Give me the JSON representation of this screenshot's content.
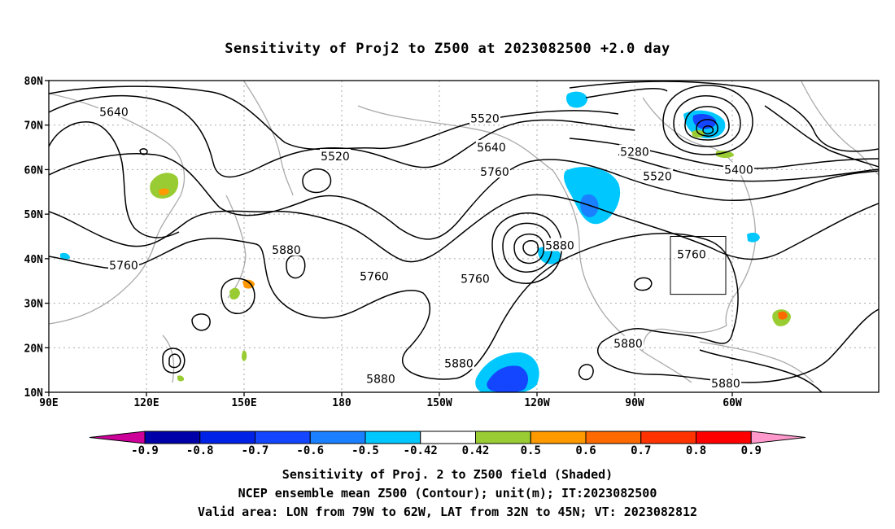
{
  "title": "Sensitivity of Proj2 to Z500 at 2023082500 +2.0 day",
  "lat_labels": [
    "80N",
    "70N",
    "60N",
    "50N",
    "40N",
    "30N",
    "20N",
    "10N"
  ],
  "lon_labels": [
    "90E",
    "120E",
    "150E",
    "180",
    "150W",
    "120W",
    "90W",
    "60W"
  ],
  "contour_labels": [
    {
      "text": "5640",
      "lon": 110,
      "lat": 73
    },
    {
      "text": "5520",
      "lon": 178,
      "lat": 63
    },
    {
      "text": "5520",
      "lon": 224,
      "lat": 71.5
    },
    {
      "text": "5640",
      "lon": 226,
      "lat": 65
    },
    {
      "text": "5760",
      "lon": 227,
      "lat": 59.5
    },
    {
      "text": "5280",
      "lon": 270,
      "lat": 64
    },
    {
      "text": "5520",
      "lon": 277,
      "lat": 58.5
    },
    {
      "text": "5400",
      "lon": 302,
      "lat": 60
    },
    {
      "text": "5880",
      "lon": 163,
      "lat": 42
    },
    {
      "text": "5760",
      "lon": 113,
      "lat": 38.5
    },
    {
      "text": "5760",
      "lon": 190,
      "lat": 36
    },
    {
      "text": "5760",
      "lon": 221,
      "lat": 35.5
    },
    {
      "text": "5880",
      "lon": 247,
      "lat": 43
    },
    {
      "text": "5760",
      "lon": 287.5,
      "lat": 41
    },
    {
      "text": "5880",
      "lon": 268,
      "lat": 21
    },
    {
      "text": "5880",
      "lon": 216,
      "lat": 16.5
    },
    {
      "text": "5880",
      "lon": 192,
      "lat": 13
    },
    {
      "text": "5880",
      "lon": 298,
      "lat": 12
    }
  ],
  "colorbar": {
    "labels": [
      "-0.9",
      "-0.8",
      "-0.7",
      "-0.6",
      "-0.5",
      "-0.42",
      "0.42",
      "0.5",
      "0.6",
      "0.7",
      "0.8",
      "0.9"
    ],
    "colors": [
      "#0000a8",
      "#0022e6",
      "#1446ff",
      "#1a80ff",
      "#00c8ff",
      "#ffffff",
      "#99cc33",
      "#ff9900",
      "#ff6a00",
      "#ff3300",
      "#ff0000"
    ],
    "low_end": "#cc0099",
    "high_end": "#ff99cc"
  },
  "valid_area": {
    "lon_min": -79,
    "lon_max": -62,
    "lat_min": 32,
    "lat_max": 45
  },
  "captions": [
    "Sensitivity of Proj. 2 to Z500 field (Shaded)",
    "NCEP ensemble mean Z500 (Contour); unit(m); IT:2023082500",
    "Valid area: LON from 79W to 62W, LAT from 32N to 45N; VT: 2023082812"
  ]
}
